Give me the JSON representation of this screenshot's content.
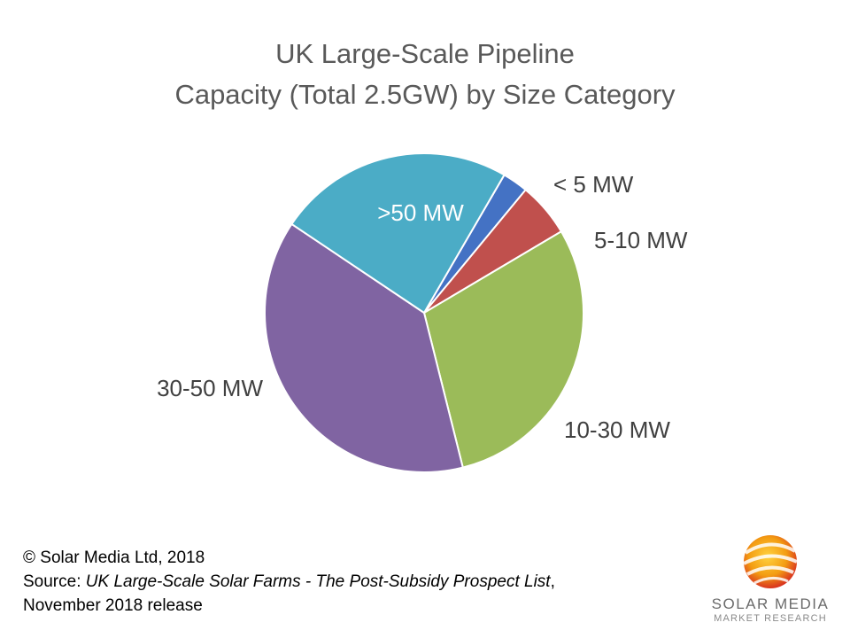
{
  "title": {
    "line1": "UK Large-Scale Pipeline",
    "line2": "Capacity (Total 2.5GW) by Size Category"
  },
  "chart_data": {
    "type": "pie",
    "title": "UK Large-Scale Pipeline Capacity (Total 2.5GW) by Size Category",
    "slices": [
      {
        "label": "< 5 MW",
        "value": 2.6,
        "color": "#4472C4",
        "label_position": "outside"
      },
      {
        "label": "5-10 MW",
        "value": 5.5,
        "color": "#C0504D",
        "label_position": "outside"
      },
      {
        "label": "10-30 MW",
        "value": 29.6,
        "color": "#9BBB59",
        "label_position": "outside"
      },
      {
        "label": "30-50 MW",
        "value": 38.3,
        "color": "#8064A2",
        "label_position": "outside"
      },
      {
        "label": ">50 MW",
        "value": 24.0,
        "color": "#4BACC6",
        "label_position": "inside"
      }
    ],
    "start_angle_deg": 30.2
  },
  "footer": {
    "copyright": "© Solar Media Ltd, 2018",
    "source_prefix": "Source: ",
    "source_title": "UK Large-Scale Solar Farms - The Post-Subsidy Prospect List",
    "source_suffix": ",",
    "release": "November 2018 release"
  },
  "logo": {
    "brand": "SOLAR MEDIA",
    "subtitle": "MARKET RESEARCH"
  }
}
